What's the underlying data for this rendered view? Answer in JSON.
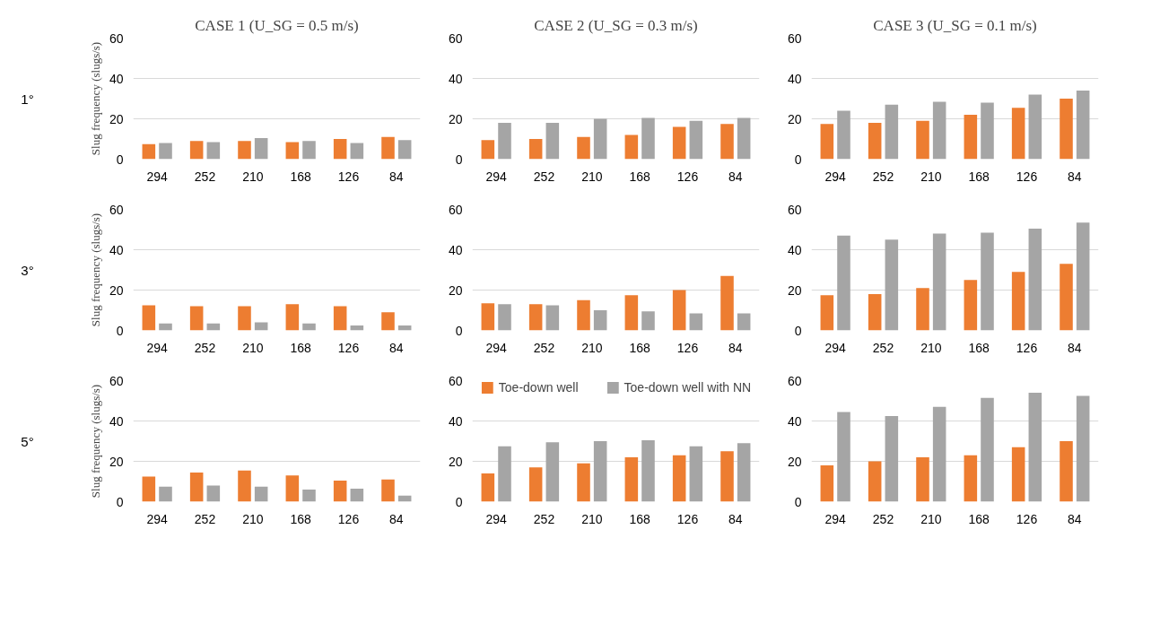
{
  "chart_data": [
    {
      "type": "bar",
      "title": "CASE 1 (U_SG = 0.5 m/s)",
      "ylabel": "Slug frequency (slugs/s)",
      "annotations": [
        "1°"
      ],
      "categories": [
        "294",
        "252",
        "210",
        "168",
        "126",
        "84"
      ],
      "series": [
        {
          "color": "#ed7d31",
          "values": [
            7.5,
            9,
            9,
            8.5,
            10,
            11
          ]
        },
        {
          "color": "#a5a5a5",
          "values": [
            8,
            8.5,
            10.5,
            9,
            8,
            9.5
          ]
        }
      ],
      "ylim": [
        0,
        60
      ],
      "yticks": [
        0,
        20,
        40,
        60
      ],
      "grid": "y"
    },
    {
      "type": "bar",
      "title": "CASE 2 (U_SG = 0.3 m/s)",
      "categories": [
        "294",
        "252",
        "210",
        "168",
        "126",
        "84"
      ],
      "series": [
        {
          "color": "#ed7d31",
          "values": [
            9.5,
            10,
            11,
            12,
            16,
            17.5
          ]
        },
        {
          "color": "#a5a5a5",
          "values": [
            18,
            18,
            20,
            20.5,
            19,
            20.5
          ]
        }
      ],
      "ylim": [
        0,
        60
      ],
      "yticks": [
        0,
        20,
        40,
        60
      ],
      "grid": "y"
    },
    {
      "type": "bar",
      "title": "CASE 3 (U_SG = 0.1 m/s)",
      "categories": [
        "294",
        "252",
        "210",
        "168",
        "126",
        "84"
      ],
      "series": [
        {
          "color": "#ed7d31",
          "values": [
            17.5,
            18,
            19,
            22,
            25.5,
            30
          ]
        },
        {
          "color": "#a5a5a5",
          "values": [
            24,
            27,
            28.5,
            28,
            32,
            34
          ]
        }
      ],
      "ylim": [
        0,
        60
      ],
      "yticks": [
        0,
        20,
        40,
        60
      ],
      "grid": "y"
    },
    {
      "type": "bar",
      "ylabel": "Slug frequency (slugs/s)",
      "annotations": [
        "3°"
      ],
      "categories": [
        "294",
        "252",
        "210",
        "168",
        "126",
        "84"
      ],
      "series": [
        {
          "color": "#ed7d31",
          "values": [
            12.5,
            12,
            12,
            13,
            12,
            9
          ]
        },
        {
          "color": "#a5a5a5",
          "values": [
            3.5,
            3.5,
            4,
            3.5,
            2.5,
            2.5
          ]
        }
      ],
      "ylim": [
        0,
        60
      ],
      "yticks": [
        0,
        20,
        40,
        60
      ],
      "grid": "y"
    },
    {
      "type": "bar",
      "categories": [
        "294",
        "252",
        "210",
        "168",
        "126",
        "84"
      ],
      "series": [
        {
          "color": "#ed7d31",
          "values": [
            13.5,
            13,
            15,
            17.5,
            20,
            27
          ]
        },
        {
          "color": "#a5a5a5",
          "values": [
            13,
            12.5,
            10,
            9.5,
            8.5,
            8.5
          ]
        }
      ],
      "ylim": [
        0,
        60
      ],
      "yticks": [
        0,
        20,
        40,
        60
      ],
      "grid": "y"
    },
    {
      "type": "bar",
      "categories": [
        "294",
        "252",
        "210",
        "168",
        "126",
        "84"
      ],
      "series": [
        {
          "color": "#ed7d31",
          "values": [
            17.5,
            18,
            21,
            25,
            29,
            33
          ]
        },
        {
          "color": "#a5a5a5",
          "values": [
            47,
            45,
            48,
            48.5,
            50.5,
            53.5
          ]
        }
      ],
      "ylim": [
        0,
        60
      ],
      "yticks": [
        0,
        20,
        40,
        60
      ],
      "grid": "y"
    },
    {
      "type": "bar",
      "ylabel": "Slug frequency (slugs/s)",
      "annotations": [
        "5°"
      ],
      "categories": [
        "294",
        "252",
        "210",
        "168",
        "126",
        "84"
      ],
      "series": [
        {
          "color": "#ed7d31",
          "values": [
            12.5,
            14.5,
            15.5,
            13,
            10.5,
            11
          ]
        },
        {
          "color": "#a5a5a5",
          "values": [
            7.5,
            8,
            7.5,
            6,
            6.5,
            3
          ]
        }
      ],
      "ylim": [
        0,
        60
      ],
      "yticks": [
        0,
        20,
        40,
        60
      ],
      "grid": "y"
    },
    {
      "type": "bar",
      "legend": "top",
      "categories": [
        "294",
        "252",
        "210",
        "168",
        "126",
        "84"
      ],
      "series": [
        {
          "name": "Toe-down well",
          "color": "#ed7d31",
          "values": [
            14,
            17,
            19,
            22,
            23,
            25
          ]
        },
        {
          "name": "Toe-down well with NN",
          "color": "#a5a5a5",
          "values": [
            27.5,
            29.5,
            30,
            30.5,
            27.5,
            29
          ]
        }
      ],
      "ylim": [
        0,
        60
      ],
      "yticks": [
        0,
        20,
        40,
        60
      ],
      "grid": "y"
    },
    {
      "type": "bar",
      "categories": [
        "294",
        "252",
        "210",
        "168",
        "126",
        "84"
      ],
      "series": [
        {
          "color": "#ed7d31",
          "values": [
            18,
            20,
            22,
            23,
            27,
            30
          ]
        },
        {
          "color": "#a5a5a5",
          "values": [
            44.5,
            42.5,
            47,
            51.5,
            54,
            52.5
          ]
        }
      ],
      "ylim": [
        0,
        60
      ],
      "yticks": [
        0,
        20,
        40,
        60
      ],
      "grid": "y"
    }
  ]
}
